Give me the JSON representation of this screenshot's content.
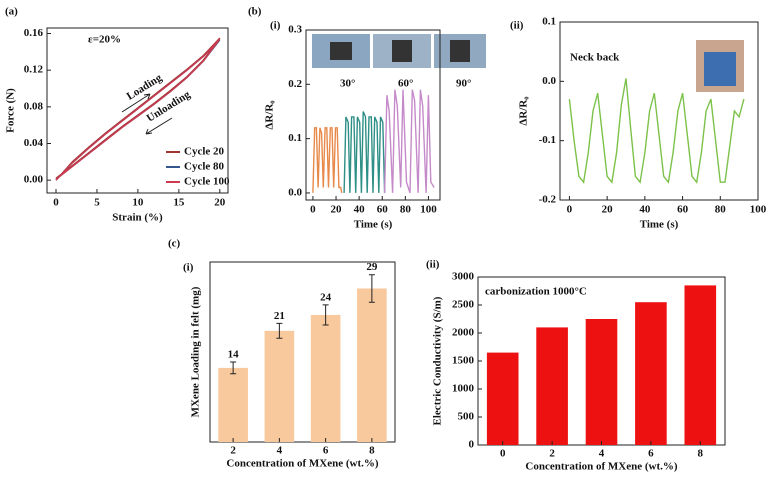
{
  "chart_data": [
    {
      "type": "line",
      "panel": "(a)",
      "x_label": "Strain (%)",
      "y_label": "Force (N)",
      "xlim": [
        -1.1,
        21
      ],
      "xticks": [
        0,
        5,
        10,
        15,
        20
      ],
      "ylim": [
        -0.014,
        0.166
      ],
      "yticks": [
        {
          "value": 0,
          "label": "0.00"
        },
        {
          "value": 0.04,
          "label": "0.04"
        },
        {
          "value": 0.08,
          "label": "0.08"
        },
        {
          "value": 0.12,
          "label": "0.12"
        },
        {
          "value": 0.16,
          "label": "0.16"
        }
      ],
      "x": [
        0,
        2,
        4,
        6,
        8,
        10,
        12,
        14,
        16,
        18,
        20,
        20,
        18,
        16,
        14,
        12,
        10,
        8,
        6,
        4,
        2,
        0
      ],
      "annotations": [
        "ε=20%",
        "Loading",
        "Unloading"
      ],
      "series": [
        {
          "name": "Cycle 20",
          "color": "#a0342e",
          "values": [
            0,
            0.02,
            0.036,
            0.051,
            0.065,
            0.079,
            0.093,
            0.107,
            0.121,
            0.136,
            0.155,
            0.155,
            0.131,
            0.113,
            0.098,
            0.084,
            0.071,
            0.058,
            0.044,
            0.03,
            0.016,
            0.002
          ]
        },
        {
          "name": "Cycle 80",
          "color": "#34568b",
          "values": [
            0,
            0.019,
            0.035,
            0.05,
            0.064,
            0.078,
            0.092,
            0.106,
            0.12,
            0.135,
            0.153,
            0.153,
            0.13,
            0.112,
            0.097,
            0.083,
            0.07,
            0.057,
            0.043,
            0.029,
            0.015,
            0.001
          ]
        },
        {
          "name": "Cycle 100",
          "color": "#cf3a4f",
          "values": [
            0,
            0.019,
            0.035,
            0.05,
            0.064,
            0.078,
            0.092,
            0.106,
            0.12,
            0.135,
            0.154,
            0.154,
            0.13,
            0.112,
            0.097,
            0.083,
            0.07,
            0.057,
            0.043,
            0.029,
            0.015,
            0.001
          ]
        }
      ]
    },
    {
      "type": "line",
      "group": "(b)",
      "panel": "(i)",
      "x_label": "Time (s)",
      "y_label": "ΔR/R₀",
      "xlim": [
        -6,
        110
      ],
      "xticks": [
        0,
        20,
        40,
        60,
        80,
        100
      ],
      "ylim": [
        -0.013,
        0.3
      ],
      "yticks": [
        {
          "value": 0,
          "label": "0.0"
        },
        0.1,
        0.2,
        0.3
      ],
      "annotations": [
        "30°",
        "60°",
        "90°"
      ],
      "series": [
        {
          "color": "#e8894a",
          "x": [
            0,
            1.5,
            3,
            4.5,
            6,
            7.5,
            9,
            10.5,
            12,
            13.5,
            15,
            16.5,
            18,
            19.5,
            21,
            22.5,
            24,
            25
          ],
          "values": [
            0,
            0.12,
            0.12,
            0.01,
            0.12,
            0.11,
            0.01,
            0.12,
            0.12,
            0.01,
            0.12,
            0.12,
            0.01,
            0.12,
            0.12,
            0.01,
            0.01,
            0
          ]
        },
        {
          "color": "#2e8f86",
          "x": [
            27,
            28.5,
            30.5,
            32,
            33.5,
            35.5,
            37,
            38.5,
            40.5,
            42,
            43.5,
            45.5,
            47,
            48.5,
            50.5,
            52,
            53.5,
            55.5,
            57,
            58.5,
            60.5,
            62
          ],
          "values": [
            0,
            0.14,
            0.13,
            0,
            0.14,
            0.14,
            0,
            0.14,
            0.13,
            0,
            0.15,
            0.14,
            0,
            0.14,
            0.14,
            0,
            0.14,
            0.13,
            0,
            0.14,
            0.13,
            0
          ]
        },
        {
          "color": "#c58ac9",
          "x": [
            62,
            64,
            66,
            69,
            71,
            73,
            76,
            78,
            81,
            84,
            86,
            88,
            91,
            93,
            95,
            98,
            100,
            102,
            105
          ],
          "values": [
            0,
            0.18,
            0.15,
            0,
            0.19,
            0.16,
            0.01,
            0.19,
            0.02,
            0,
            0.19,
            0.17,
            0,
            0.19,
            0.16,
            0,
            0.18,
            0.02,
            0.01
          ]
        }
      ]
    },
    {
      "type": "line",
      "panel": "(ii)",
      "x_label": "Time (s)",
      "y_label": "ΔR/R₀",
      "xlim": [
        -5,
        100
      ],
      "xticks": [
        0,
        20,
        40,
        60,
        80,
        100
      ],
      "ylim": [
        -0.2,
        0.1
      ],
      "yticks": [
        -0.2,
        -0.1,
        {
          "value": 0,
          "label": "0.0"
        },
        0.1
      ],
      "annotations": [
        "Neck back"
      ],
      "series": [
        {
          "color": "#7cc24a",
          "x": [
            0,
            2.5,
            5,
            7.5,
            10,
            12.5,
            15,
            17.5,
            20,
            22.5,
            25,
            27.5,
            30,
            32.5,
            35,
            37.5,
            40,
            42.5,
            45,
            47.5,
            50,
            52.5,
            55,
            57.5,
            60,
            62.5,
            65,
            67.5,
            70,
            72.5,
            75,
            77.5,
            80,
            82.5,
            85,
            87.5,
            90,
            92.5
          ],
          "values": [
            -0.03,
            -0.1,
            -0.16,
            -0.17,
            -0.12,
            -0.05,
            -0.02,
            -0.09,
            -0.16,
            -0.17,
            -0.12,
            -0.04,
            0.005,
            -0.08,
            -0.16,
            -0.17,
            -0.12,
            -0.05,
            -0.02,
            -0.09,
            -0.16,
            -0.17,
            -0.12,
            -0.05,
            -0.02,
            -0.09,
            -0.16,
            -0.17,
            -0.12,
            -0.05,
            -0.03,
            -0.1,
            -0.17,
            -0.17,
            -0.11,
            -0.05,
            -0.06,
            -0.03
          ]
        }
      ]
    },
    {
      "type": "bar",
      "group": "(c)",
      "panel": "(i)",
      "x_label": "Concentration of MXene (wt.%)",
      "y_label": "MXene Loading in felt (mg)",
      "categories": [
        "2",
        "4",
        "6",
        "8"
      ],
      "values": [
        14,
        21,
        24,
        29
      ],
      "errors": [
        1.1,
        1.4,
        1.9,
        2.6
      ],
      "color": "#f8c99c",
      "ylim": [
        0,
        34
      ]
    },
    {
      "type": "bar",
      "panel": "(ii)",
      "x_label": "Concentration of MXene (wt.%)",
      "y_label": "Electric Conductivity (S/m)",
      "categories": [
        "0",
        "2",
        "4",
        "6",
        "8"
      ],
      "values": [
        1650,
        2100,
        2250,
        2550,
        2850
      ],
      "color": "#ee1111",
      "ylim": [
        0,
        3000
      ],
      "yticks": [
        0,
        500,
        1000,
        1500,
        2000,
        2500,
        3000
      ],
      "annotations": [
        "carbonization 1000°C"
      ]
    }
  ]
}
